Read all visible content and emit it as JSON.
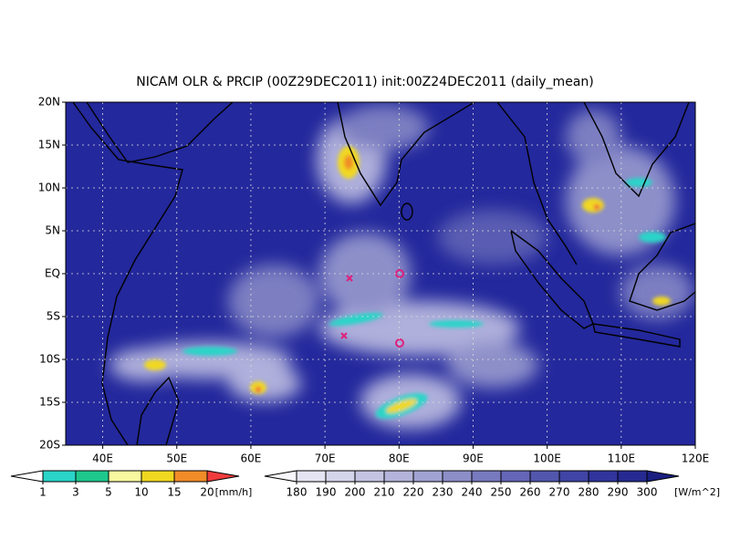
{
  "chart_data": {
    "type": "map",
    "title": "NICAM OLR & PRCIP (00Z29DEC2011) init:00Z24DEC2011 (daily_mean)",
    "xlim": [
      35,
      120
    ],
    "ylim": [
      -20,
      20
    ],
    "xticks": [
      {
        "value": 40,
        "label": "40E"
      },
      {
        "value": 50,
        "label": "50E"
      },
      {
        "value": 60,
        "label": "60E"
      },
      {
        "value": 70,
        "label": "70E"
      },
      {
        "value": 80,
        "label": "80E"
      },
      {
        "value": 90,
        "label": "90E"
      },
      {
        "value": 100,
        "label": "100E"
      },
      {
        "value": 110,
        "label": "110E"
      },
      {
        "value": 120,
        "label": "120E"
      }
    ],
    "yticks": [
      {
        "value": 20,
        "label": "20N"
      },
      {
        "value": 15,
        "label": "15N"
      },
      {
        "value": 10,
        "label": "10N"
      },
      {
        "value": 5,
        "label": "5N"
      },
      {
        "value": 0,
        "label": "EQ"
      },
      {
        "value": -5,
        "label": "5S"
      },
      {
        "value": -10,
        "label": "10S"
      },
      {
        "value": -15,
        "label": "15S"
      },
      {
        "value": -20,
        "label": "20S"
      }
    ],
    "grid": true,
    "background": "#23289c",
    "precip_scale": {
      "levels": [
        1,
        3,
        5,
        10,
        15,
        20
      ],
      "unit": "[mm/h]",
      "colors": [
        "#ffffff",
        "#2ad4c8",
        "#1ec88c",
        "#f8f8a0",
        "#f0d820",
        "#f08c28",
        "#f03c3c"
      ]
    },
    "olr_scale": {
      "levels": [
        180,
        190,
        200,
        210,
        220,
        230,
        240,
        250,
        260,
        270,
        280,
        290,
        300
      ],
      "unit": "[W/m^2]",
      "colors": [
        "#f8f8fc",
        "#e4e4f2",
        "#d4d4ea",
        "#c4c4e2",
        "#b4b4da",
        "#a0a2d2",
        "#8c8ec8",
        "#787ac0",
        "#6466b6",
        "#5256ac",
        "#4044a4",
        "#30349c",
        "#262a90",
        "#1a1e80"
      ]
    }
  }
}
